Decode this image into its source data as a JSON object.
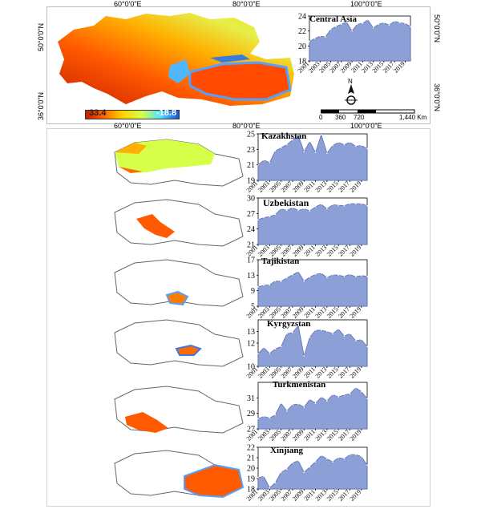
{
  "top_map": {
    "lon_labels_top": [
      "60°0'0\"E",
      "80°0'0\"E",
      "100°0'0\"E"
    ],
    "lon_labels_bottom": [
      "60°0'0\"E",
      "80°0'0\"E",
      "100°0'0\"E"
    ],
    "lat_labels_left": [
      "50°0'0\"N",
      "36°0'0\"N"
    ],
    "lat_labels_right": [
      "50°0'0\"N",
      "36°0'0\"N"
    ],
    "legend_max": "33.4",
    "legend_min": "-18.8",
    "legend_colors": [
      "#c81e00",
      "#ff6a00",
      "#ffd400",
      "#d6ff4a",
      "#55e0ff",
      "#1d52d6"
    ],
    "north_label": "N",
    "scale_labels": [
      "0",
      "360",
      "720",
      "1,440 Km"
    ]
  },
  "chart_data": [
    {
      "type": "area",
      "title": "Central Asia",
      "x": [
        2001,
        2002,
        2003,
        2004,
        2005,
        2006,
        2007,
        2008,
        2009,
        2010,
        2011,
        2012,
        2013,
        2014,
        2015,
        2016,
        2017,
        2018,
        2019,
        2020
      ],
      "values": [
        20.6,
        21.0,
        21.3,
        21.2,
        22.2,
        22.6,
        22.9,
        23.2,
        22.0,
        22.9,
        23.0,
        23.5,
        22.4,
        22.9,
        23.1,
        22.8,
        23.3,
        23.1,
        23.0,
        22.6
      ],
      "ylim": [
        18,
        24
      ],
      "yticks": [
        18,
        20,
        22,
        24
      ],
      "xticks": [
        "2001",
        "2003",
        "2005",
        "2007",
        "2009",
        "2011",
        "2013",
        "2015",
        "2017",
        "2019"
      ]
    },
    {
      "type": "area",
      "title": "Kazakhstan",
      "x": [
        2001,
        2002,
        2003,
        2004,
        2005,
        2006,
        2007,
        2008,
        2009,
        2010,
        2011,
        2012,
        2013,
        2014,
        2015,
        2016,
        2017,
        2018,
        2019,
        2020
      ],
      "values": [
        21.0,
        21.6,
        21.3,
        22.8,
        23.2,
        23.6,
        24.2,
        24.8,
        22.7,
        24.0,
        22.6,
        24.9,
        22.5,
        23.5,
        23.9,
        23.6,
        23.9,
        23.4,
        23.5,
        23.1
      ],
      "ylim": [
        19,
        25
      ],
      "yticks": [
        19,
        21,
        23,
        25
      ],
      "xticks": [
        "2001",
        "2003",
        "2005",
        "2007",
        "2009",
        "2011",
        "2013",
        "2015",
        "2017",
        "2019"
      ]
    },
    {
      "type": "area",
      "title": "Uzbekistan",
      "x": [
        2001,
        2002,
        2003,
        2004,
        2005,
        2006,
        2007,
        2008,
        2009,
        2010,
        2011,
        2012,
        2013,
        2014,
        2015,
        2016,
        2017,
        2018,
        2019,
        2020
      ],
      "values": [
        25.8,
        26.2,
        26.4,
        26.8,
        27.9,
        27.6,
        28.1,
        27.6,
        27.9,
        27.5,
        28.3,
        28.8,
        27.9,
        28.7,
        28.6,
        28.5,
        28.9,
        28.9,
        28.9,
        28.5
      ],
      "ylim": [
        21,
        30
      ],
      "yticks": [
        21,
        24,
        27,
        30
      ],
      "xticks": [
        "2001",
        "2003",
        "2005",
        "2007",
        "2009",
        "2011",
        "2013",
        "2015",
        "2017",
        "2019"
      ]
    },
    {
      "type": "area",
      "title": "Tajikistan",
      "x": [
        2001,
        2002,
        2003,
        2004,
        2005,
        2006,
        2007,
        2008,
        2009,
        2010,
        2011,
        2012,
        2013,
        2014,
        2015,
        2016,
        2017,
        2018,
        2019,
        2020
      ],
      "values": [
        10.0,
        10.4,
        10.5,
        11.5,
        11.4,
        12.3,
        13.1,
        13.9,
        11.5,
        12.5,
        13.2,
        13.5,
        12.4,
        13.1,
        13.0,
        12.7,
        13.2,
        12.6,
        12.9,
        12.7
      ],
      "ylim": [
        5,
        17
      ],
      "yticks": [
        5,
        9,
        13,
        17
      ],
      "xticks": [
        "2001",
        "2003",
        "2005",
        "2007",
        "2009",
        "2011",
        "2013",
        "2015",
        "2017",
        "2019"
      ]
    },
    {
      "type": "area",
      "title": "Kyrgyzstan",
      "x": [
        2001,
        2002,
        2003,
        2004,
        2005,
        2006,
        2007,
        2008,
        2009,
        2010,
        2011,
        2012,
        2013,
        2014,
        2015,
        2016,
        2017,
        2018,
        2019,
        2020
      ],
      "values": [
        11.1,
        11.6,
        11.1,
        11.5,
        11.7,
        12.8,
        12.9,
        13.5,
        10.9,
        12.5,
        13.1,
        13.1,
        13.0,
        12.8,
        13.2,
        12.6,
        12.8,
        12.2,
        12.3,
        11.7
      ],
      "ylim": [
        10,
        14
      ],
      "yticks": [
        10,
        12,
        13
      ],
      "xticks": [
        "2001",
        "2003",
        "2005",
        "2007",
        "2009",
        "2011",
        "2013",
        "2015",
        "2017",
        "2019"
      ]
    },
    {
      "type": "area",
      "title": "Turkmenistan",
      "x": [
        2001,
        2002,
        2003,
        2004,
        2005,
        2006,
        2007,
        2008,
        2009,
        2010,
        2011,
        2012,
        2013,
        2014,
        2015,
        2016,
        2017,
        2018,
        2019,
        2020
      ],
      "values": [
        28.3,
        28.6,
        28.4,
        28.8,
        30.3,
        29.3,
        30.1,
        30.2,
        29.8,
        30.8,
        30.3,
        31.1,
        30.6,
        31.4,
        31.1,
        31.4,
        31.5,
        32.3,
        31.8,
        30.9
      ],
      "ylim": [
        27,
        33
      ],
      "yticks": [
        27,
        29,
        31
      ],
      "xticks": [
        "2001",
        "2003",
        "2005",
        "2007",
        "2009",
        "2011",
        "2013",
        "2015",
        "2017",
        "2019"
      ]
    },
    {
      "type": "area",
      "title": "Xinjiang",
      "x": [
        2001,
        2002,
        2003,
        2004,
        2005,
        2006,
        2007,
        2008,
        2009,
        2010,
        2011,
        2012,
        2013,
        2014,
        2015,
        2016,
        2017,
        2018,
        2019,
        2020
      ],
      "values": [
        19.1,
        19.2,
        18.1,
        18.6,
        19.6,
        19.9,
        20.5,
        20.7,
        19.6,
        20.1,
        20.6,
        21.2,
        20.9,
        20.6,
        21.0,
        20.9,
        21.3,
        21.3,
        21.1,
        20.3
      ],
      "ylim": [
        18,
        22
      ],
      "yticks": [
        18,
        19,
        20,
        21,
        22
      ],
      "xticks": [
        "2001",
        "2003",
        "2005",
        "2007",
        "2009",
        "2011",
        "2013",
        "2015",
        "2017",
        "2019"
      ]
    }
  ]
}
